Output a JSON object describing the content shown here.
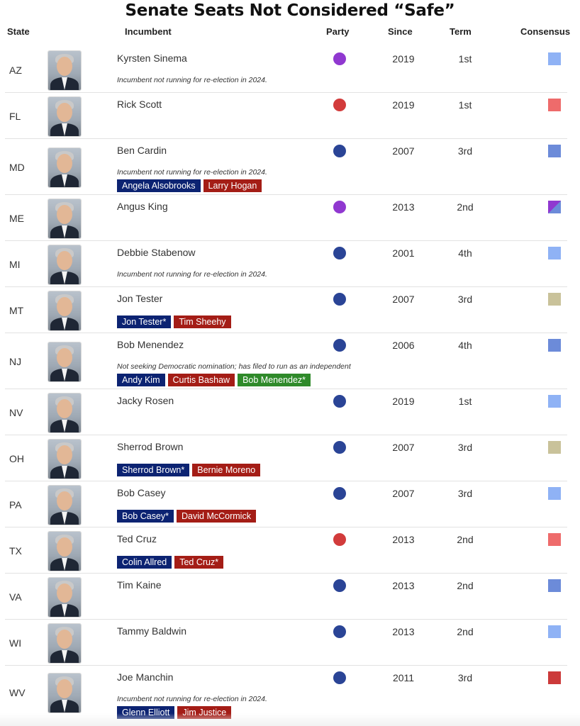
{
  "title": "Senate Seats Not Considered “Safe”",
  "headers": {
    "state": "State",
    "incumbent": "Incumbent",
    "party": "Party",
    "since": "Since",
    "term": "Term",
    "consensus": "Consensus"
  },
  "colors": {
    "party_dem": "#2a4496",
    "party_rep": "#d23b3b",
    "party_ind": "#9038d0",
    "cand_dem": "#0c2372",
    "cand_rep": "#a41d16",
    "cand_ind": "#2f8a2a",
    "safe_d_light": "#8fb2f5",
    "safe_d_mid": "#6c8bd9",
    "likely_r": "#ee6b6b",
    "safe_r": "#cc3a3a",
    "tossup": "#c9c29a"
  },
  "rows": [
    {
      "state": "AZ",
      "name": "Kyrsten Sinema",
      "note": "Incumbent not running for re-election in 2024.",
      "party": "ind",
      "since": "2019",
      "term": "1st",
      "consensus": "#8fb2f5",
      "candidates": []
    },
    {
      "state": "FL",
      "name": "Rick Scott",
      "note": "",
      "party": "rep",
      "since": "2019",
      "term": "1st",
      "consensus": "#ee6b6b",
      "candidates": []
    },
    {
      "state": "MD",
      "name": "Ben Cardin",
      "note": "Incumbent not running for re-election in 2024.",
      "party": "dem",
      "since": "2007",
      "term": "3rd",
      "consensus": "#6c8bd9",
      "candidates": [
        {
          "label": "Angela Alsobrooks",
          "party": "D"
        },
        {
          "label": "Larry Hogan",
          "party": "R"
        }
      ]
    },
    {
      "state": "ME",
      "name": "Angus King",
      "note": "",
      "party": "ind",
      "since": "2013",
      "term": "2nd",
      "consensus": "split",
      "candidates": []
    },
    {
      "state": "MI",
      "name": "Debbie Stabenow",
      "note": "Incumbent not running for re-election in 2024.",
      "party": "dem",
      "since": "2001",
      "term": "4th",
      "consensus": "#8fb2f5",
      "candidates": []
    },
    {
      "state": "MT",
      "name": "Jon Tester",
      "note": "",
      "party": "dem",
      "since": "2007",
      "term": "3rd",
      "consensus": "#c9c29a",
      "candidates": [
        {
          "label": "Jon Tester*",
          "party": "D"
        },
        {
          "label": "Tim Sheehy",
          "party": "R"
        }
      ]
    },
    {
      "state": "NJ",
      "name": "Bob Menendez",
      "note": "Not seeking Democratic nomination; has filed to run as an independent",
      "party": "dem",
      "since": "2006",
      "term": "4th",
      "consensus": "#6c8bd9",
      "candidates": [
        {
          "label": "Andy Kim",
          "party": "D"
        },
        {
          "label": "Curtis Bashaw",
          "party": "R"
        },
        {
          "label": "Bob Menendez*",
          "party": "I"
        }
      ]
    },
    {
      "state": "NV",
      "name": "Jacky Rosen",
      "note": "",
      "party": "dem",
      "since": "2019",
      "term": "1st",
      "consensus": "#8fb2f5",
      "candidates": []
    },
    {
      "state": "OH",
      "name": "Sherrod Brown",
      "note": "",
      "party": "dem",
      "since": "2007",
      "term": "3rd",
      "consensus": "#c9c29a",
      "candidates": [
        {
          "label": "Sherrod Brown*",
          "party": "D"
        },
        {
          "label": "Bernie Moreno",
          "party": "R"
        }
      ]
    },
    {
      "state": "PA",
      "name": "Bob Casey",
      "note": "",
      "party": "dem",
      "since": "2007",
      "term": "3rd",
      "consensus": "#8fb2f5",
      "candidates": [
        {
          "label": "Bob Casey*",
          "party": "D"
        },
        {
          "label": "David McCormick",
          "party": "R"
        }
      ]
    },
    {
      "state": "TX",
      "name": "Ted Cruz",
      "note": "",
      "party": "rep",
      "since": "2013",
      "term": "2nd",
      "consensus": "#ee6b6b",
      "candidates": [
        {
          "label": "Colin Allred",
          "party": "D"
        },
        {
          "label": "Ted Cruz*",
          "party": "R"
        }
      ]
    },
    {
      "state": "VA",
      "name": "Tim Kaine",
      "note": "",
      "party": "dem",
      "since": "2013",
      "term": "2nd",
      "consensus": "#6c8bd9",
      "candidates": []
    },
    {
      "state": "WI",
      "name": "Tammy Baldwin",
      "note": "",
      "party": "dem",
      "since": "2013",
      "term": "2nd",
      "consensus": "#8fb2f5",
      "candidates": []
    },
    {
      "state": "WV",
      "name": "Joe Manchin",
      "note": "Incumbent not running for re-election in 2024.",
      "party": "dem",
      "since": "2011",
      "term": "3rd",
      "consensus": "#cc3a3a",
      "candidates": [
        {
          "label": "Glenn Elliott",
          "party": "D"
        },
        {
          "label": "Jim Justice",
          "party": "R"
        }
      ]
    }
  ]
}
